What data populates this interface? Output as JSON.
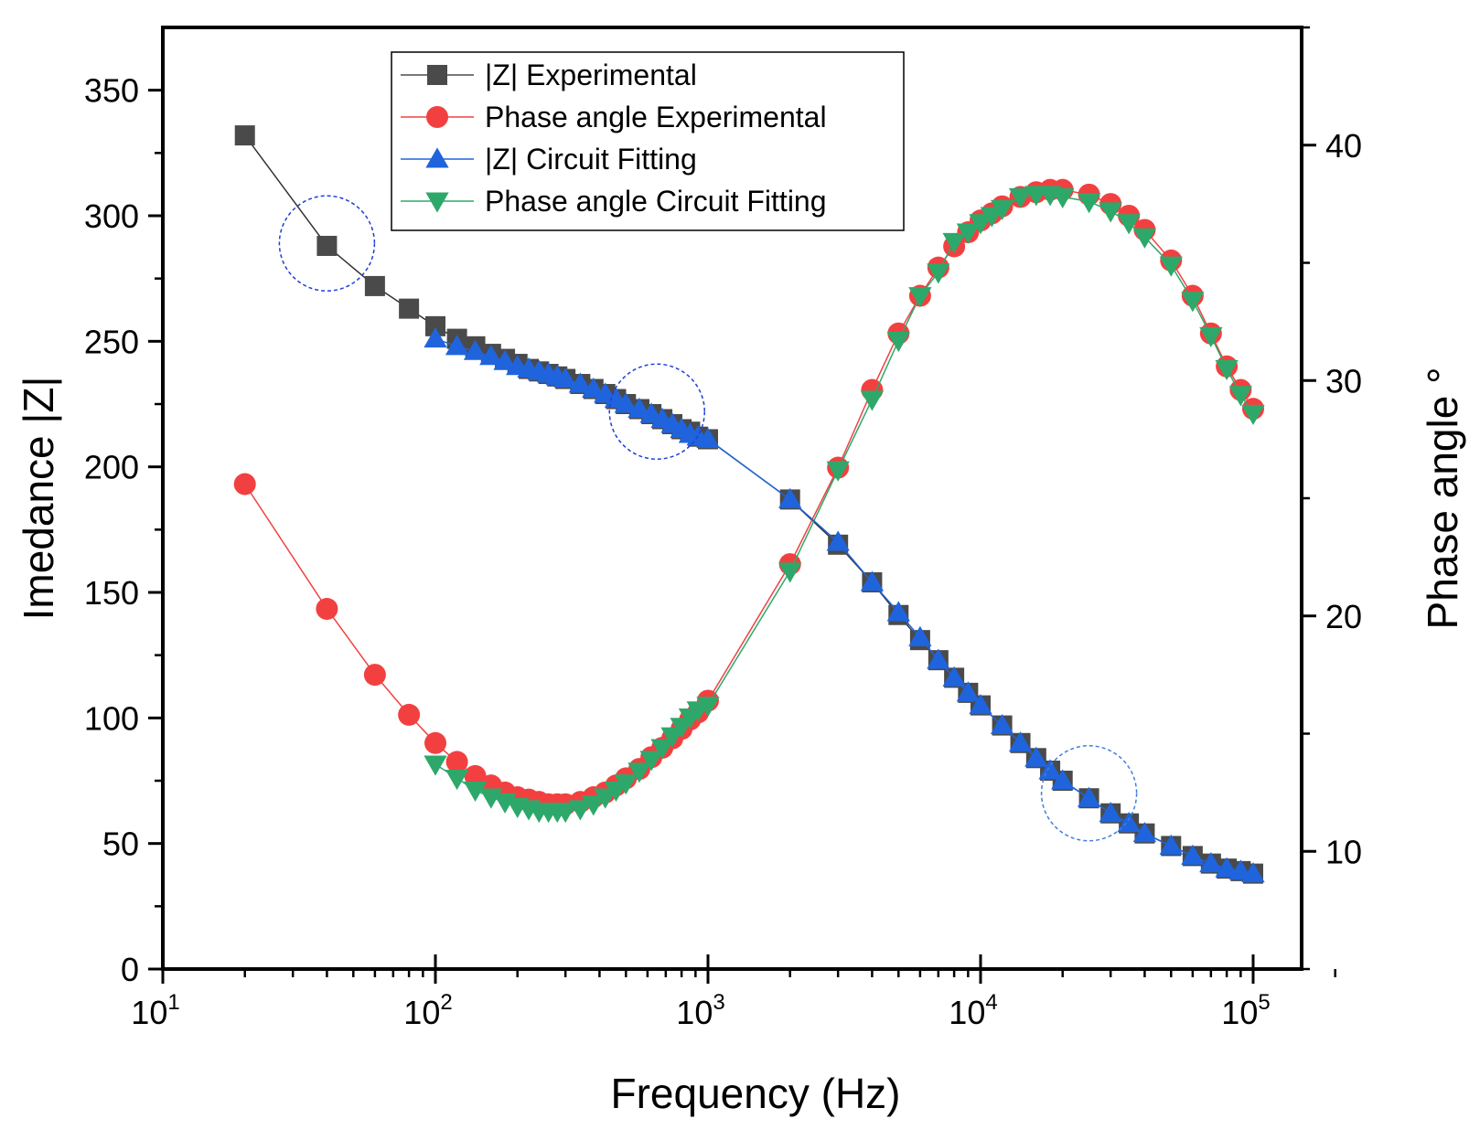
{
  "chart_data": {
    "type": "scatter",
    "xlabel": "Frequency (Hz)",
    "ylabel_left": "Imedance |Z|",
    "ylabel_right": "Phase angle °",
    "x_scale": "log10",
    "xlim": [
      10,
      200000
    ],
    "ylim_left": [
      0,
      375
    ],
    "ylim_right": [
      5,
      45
    ],
    "x_ticks": [
      {
        "base": "10",
        "exp": "1"
      },
      {
        "base": "10",
        "exp": "2"
      },
      {
        "base": "10",
        "exp": "3"
      },
      {
        "base": "10",
        "exp": "4"
      },
      {
        "base": "10",
        "exp": "5"
      }
    ],
    "y_ticks_left": [
      "0",
      "50",
      "100",
      "150",
      "200",
      "250",
      "300",
      "350"
    ],
    "y_ticks_right": [
      "10",
      "20",
      "30",
      "40"
    ],
    "legend": {
      "position": "top-center",
      "entries": [
        {
          "label": "|Z| Experimental",
          "color": "#4a4a4a",
          "marker": "square"
        },
        {
          "label": "Phase angle Experimental",
          "color": "#f24040",
          "marker": "circle"
        },
        {
          "label": "|Z| Circuit Fitting",
          "color": "#1f64dc",
          "marker": "triangle-up"
        },
        {
          "label": "Phase angle Circuit Fitting",
          "color": "#2ea86a",
          "marker": "triangle-down"
        }
      ]
    },
    "series": [
      {
        "name": "|Z| Experimental",
        "axis": "left",
        "color": "#4a4a4a",
        "line_color": "#333333",
        "marker": "square",
        "x": [
          20,
          40,
          60,
          80,
          100,
          120,
          140,
          160,
          180,
          200,
          220,
          240,
          260,
          280,
          300,
          340,
          380,
          420,
          460,
          500,
          560,
          620,
          680,
          740,
          800,
          860,
          920,
          1000,
          2000,
          3000,
          4000,
          5000,
          6000,
          7000,
          8000,
          9000,
          10000,
          12000,
          14000,
          16000,
          18000,
          20000,
          25000,
          30000,
          35000,
          40000,
          50000,
          60000,
          70000,
          80000,
          90000,
          100000
        ],
        "y": [
          332,
          288,
          272,
          263,
          256,
          251,
          248,
          245,
          243,
          241,
          239,
          238,
          237,
          236,
          235,
          233,
          231,
          229,
          227,
          225,
          223,
          221,
          219,
          217,
          215,
          214,
          212,
          211,
          187,
          169,
          154,
          141,
          131,
          123,
          116,
          110,
          105,
          97,
          90,
          84,
          79,
          75,
          68,
          62,
          58,
          54,
          49,
          45,
          42,
          40,
          39,
          38
        ]
      },
      {
        "name": "Phase angle Experimental",
        "axis": "right",
        "color": "#f24040",
        "line_color": "#f24040",
        "marker": "circle",
        "x": [
          20,
          40,
          60,
          80,
          100,
          120,
          140,
          160,
          180,
          200,
          220,
          240,
          260,
          280,
          300,
          340,
          380,
          420,
          460,
          500,
          560,
          620,
          680,
          740,
          800,
          860,
          920,
          1000,
          2000,
          3000,
          4000,
          5000,
          6000,
          7000,
          8000,
          9000,
          10000,
          11000,
          12000,
          14000,
          16000,
          18000,
          20000,
          25000,
          30000,
          35000,
          40000,
          50000,
          60000,
          70000,
          80000,
          90000,
          100000
        ],
        "y": [
          25.6,
          20.3,
          17.5,
          15.8,
          14.6,
          13.8,
          13.2,
          12.8,
          12.5,
          12.3,
          12.2,
          12.1,
          12.0,
          12.0,
          12.0,
          12.1,
          12.3,
          12.5,
          12.8,
          13.1,
          13.5,
          14.0,
          14.4,
          14.8,
          15.2,
          15.6,
          15.9,
          16.4,
          22.2,
          26.3,
          29.6,
          32.0,
          33.6,
          34.8,
          35.7,
          36.3,
          36.8,
          37.1,
          37.4,
          37.8,
          38.0,
          38.1,
          38.1,
          37.9,
          37.5,
          37.0,
          36.4,
          35.1,
          33.6,
          32.0,
          30.6,
          29.6,
          28.8
        ]
      },
      {
        "name": "|Z| Circuit Fitting",
        "axis": "left",
        "color": "#1f64dc",
        "line_color": "#1f64dc",
        "marker": "triangle-up",
        "x": [
          100,
          120,
          140,
          160,
          180,
          200,
          220,
          240,
          260,
          280,
          300,
          340,
          380,
          420,
          460,
          500,
          560,
          620,
          680,
          740,
          800,
          860,
          920,
          1000,
          2000,
          3000,
          4000,
          5000,
          6000,
          7000,
          8000,
          9000,
          10000,
          12000,
          14000,
          16000,
          18000,
          20000,
          25000,
          30000,
          35000,
          40000,
          50000,
          60000,
          70000,
          80000,
          90000,
          100000
        ],
        "y": [
          251,
          248,
          246,
          244,
          242,
          240,
          239,
          238,
          237,
          236,
          235,
          233,
          231,
          229,
          227,
          225,
          223,
          221,
          219,
          217,
          215,
          213,
          212,
          211,
          187,
          170,
          154,
          142,
          132,
          123,
          116,
          110,
          105,
          97,
          90,
          84,
          79,
          75,
          68,
          62,
          58,
          54,
          49,
          45,
          42,
          40,
          39,
          38
        ]
      },
      {
        "name": "Phase angle Circuit Fitting",
        "axis": "right",
        "color": "#2ea86a",
        "line_color": "#2ea86a",
        "marker": "triangle-down",
        "x": [
          100,
          120,
          140,
          160,
          180,
          200,
          220,
          240,
          260,
          280,
          300,
          340,
          380,
          420,
          460,
          500,
          560,
          620,
          680,
          740,
          800,
          860,
          920,
          1000,
          2000,
          3000,
          4000,
          5000,
          6000,
          7000,
          8000,
          9000,
          10000,
          11000,
          12000,
          14000,
          16000,
          18000,
          20000,
          25000,
          30000,
          35000,
          40000,
          50000,
          60000,
          70000,
          80000,
          90000,
          100000
        ],
        "y": [
          13.7,
          13.1,
          12.6,
          12.3,
          12.1,
          11.9,
          11.8,
          11.7,
          11.7,
          11.7,
          11.7,
          11.8,
          12.0,
          12.3,
          12.6,
          12.9,
          13.4,
          13.9,
          14.4,
          14.9,
          15.3,
          15.7,
          16.0,
          16.2,
          21.9,
          26.2,
          29.2,
          31.7,
          33.6,
          34.6,
          35.9,
          36.3,
          36.7,
          37.0,
          37.3,
          37.8,
          37.9,
          37.9,
          37.8,
          37.6,
          37.2,
          36.7,
          36.1,
          34.9,
          33.4,
          31.9,
          30.5,
          29.4,
          28.6
        ]
      }
    ],
    "annotations": [
      {
        "type": "dashed-circle",
        "color": "#1f3fd6",
        "x": 40,
        "y_left": 289
      },
      {
        "type": "dashed-circle",
        "color": "#1f3fd6",
        "x": 650,
        "y_left": 222
      },
      {
        "type": "dashed-circle",
        "color": "#3e7fe0",
        "x": 25000,
        "y_left": 70
      }
    ]
  }
}
